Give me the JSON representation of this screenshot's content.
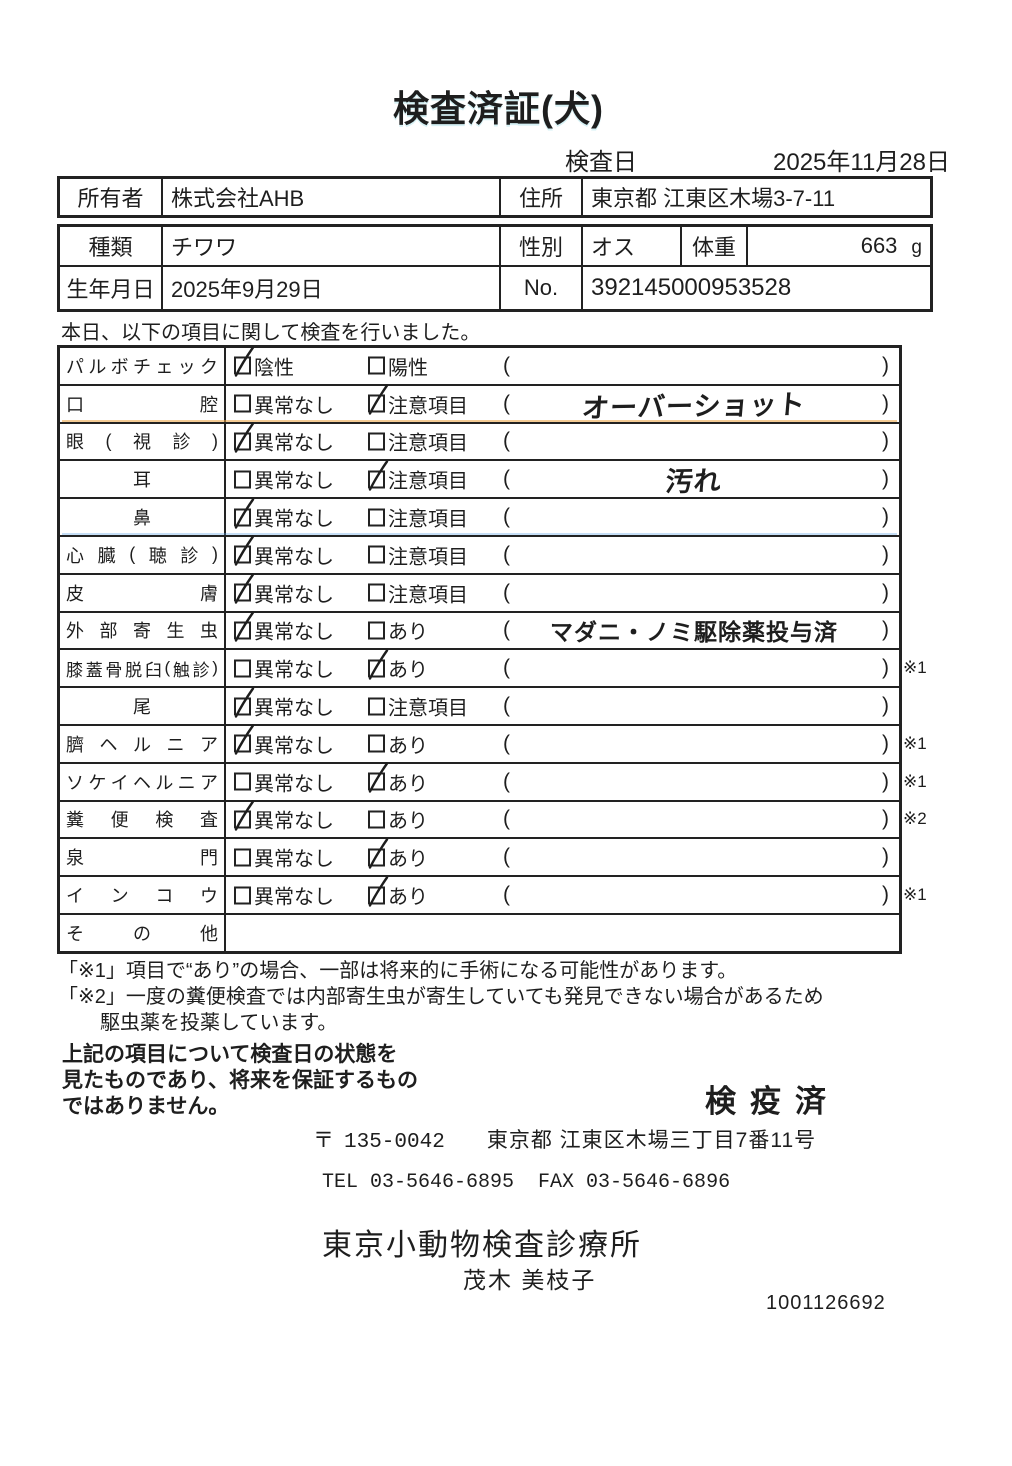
{
  "page": {
    "title": "検査済証(犬)",
    "date_label": "検査日",
    "date_value": "2025年11月28日"
  },
  "owner": {
    "owner_label": "所有者",
    "owner_value": "株式会社AHB",
    "address_label": "住所",
    "address_value": "東京都 江東区木場3-7-11",
    "breed_label": "種類",
    "breed_value": "チワワ",
    "sex_label": "性別",
    "sex_value": "オス",
    "weight_label": "体重",
    "weight_value": "663",
    "weight_unit": "g",
    "birth_label": "生年月日",
    "birth_value": "2025年9月29日",
    "no_label": "No.",
    "no_value": "392145000953528"
  },
  "intro": "本日、以下の項目に関して検査を行いました。",
  "checklist": [
    {
      "label": "パルボチェック",
      "opt1": "陰性",
      "opt2": "陽性",
      "checked": 1,
      "note": "",
      "note_style": "",
      "ref": ""
    },
    {
      "label": "口腔",
      "opt1": "異常なし",
      "opt2": "注意項目",
      "checked": 2,
      "note": "オーバーショット",
      "note_style": "hand",
      "ref": ""
    },
    {
      "label": "眼(視診)",
      "opt1": "異常なし",
      "opt2": "注意項目",
      "checked": 1,
      "note": "",
      "note_style": "",
      "ref": ""
    },
    {
      "label": "耳",
      "opt1": "異常なし",
      "opt2": "注意項目",
      "checked": 2,
      "note": "汚れ",
      "note_style": "hand",
      "ref": ""
    },
    {
      "label": "鼻",
      "opt1": "異常なし",
      "opt2": "注意項目",
      "checked": 1,
      "note": "",
      "note_style": "",
      "ref": ""
    },
    {
      "label": "心臓(聴診)",
      "opt1": "異常なし",
      "opt2": "注意項目",
      "checked": 1,
      "note": "",
      "note_style": "",
      "ref": ""
    },
    {
      "label": "皮膚",
      "opt1": "異常なし",
      "opt2": "注意項目",
      "checked": 1,
      "note": "",
      "note_style": "",
      "ref": ""
    },
    {
      "label": "外部寄生虫",
      "opt1": "異常なし",
      "opt2": "あり",
      "checked": 1,
      "note": "マダニ・ノミ駆除薬投与済",
      "note_style": "print",
      "ref": ""
    },
    {
      "label": "膝蓋骨脱臼(触診)",
      "opt1": "異常なし",
      "opt2": "あり",
      "checked": 2,
      "note": "",
      "note_style": "",
      "ref": "※1"
    },
    {
      "label": "尾",
      "opt1": "異常なし",
      "opt2": "注意項目",
      "checked": 1,
      "note": "",
      "note_style": "",
      "ref": ""
    },
    {
      "label": "臍ヘルニア",
      "opt1": "異常なし",
      "opt2": "あり",
      "checked": 1,
      "note": "",
      "note_style": "",
      "ref": "※1"
    },
    {
      "label": "ソケイヘルニア",
      "opt1": "異常なし",
      "opt2": "あり",
      "checked": 2,
      "note": "",
      "note_style": "",
      "ref": "※1"
    },
    {
      "label": "糞便検査",
      "opt1": "異常なし",
      "opt2": "あり",
      "checked": 1,
      "note": "",
      "note_style": "",
      "ref": "※2"
    },
    {
      "label": "泉門",
      "opt1": "異常なし",
      "opt2": "あり",
      "checked": 2,
      "note": "",
      "note_style": "",
      "ref": ""
    },
    {
      "label": "インコウ",
      "opt1": "異常なし",
      "opt2": "あり",
      "checked": 2,
      "note": "",
      "note_style": "",
      "ref": "※1"
    },
    {
      "label": "その他",
      "opt1": "",
      "opt2": "",
      "checked": 0,
      "note": "",
      "note_style": "",
      "ref": "",
      "empty": true
    }
  ],
  "footnotes": [
    "「※1」項目で“あり”の場合、一部は将来的に手術になる可能性があります。",
    "「※2」一度の糞便検査では内部寄生虫が寄生していても発見できない場合があるため",
    "駆虫薬を投薬しています。"
  ],
  "disclaimer": [
    "上記の項目について検査日の状態を",
    "見たものであり、将来を保証するもの",
    "ではありません。"
  ],
  "stamp": "検疫済",
  "postal_mark": "〒",
  "postal_code": "135-0042",
  "clinic_address": "東京都 江東区木場三丁目7番11号",
  "contact": "TEL 03-5646-6895  FAX 03-5646-6896",
  "clinic_name": "東京小動物検査診療所",
  "examiner_name": "茂木 美枝子",
  "serial_number": "1001126692"
}
